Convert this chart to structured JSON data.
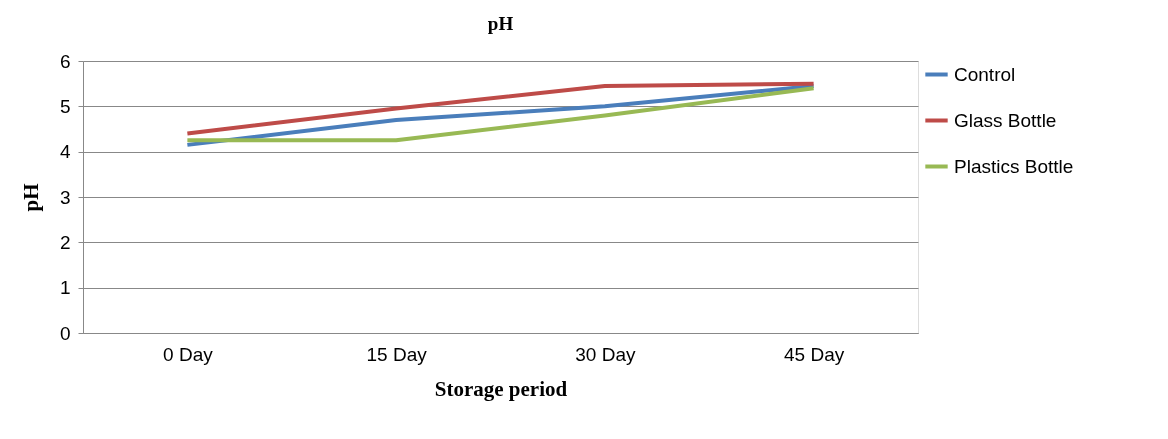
{
  "chart_data": {
    "type": "line",
    "title": "pH",
    "xlabel": "Storage period",
    "ylabel": "pH",
    "categories": [
      "0 Day",
      "15 Day",
      "30 Day",
      "45 Day"
    ],
    "series": [
      {
        "name": "Control",
        "color": "#4a7ebb",
        "values": [
          4.15,
          4.7,
          5.0,
          5.45
        ]
      },
      {
        "name": "Glass Bottle",
        "color": "#be4b48",
        "values": [
          4.4,
          4.95,
          5.45,
          5.5
        ]
      },
      {
        "name": "Plastics Bottle",
        "color": "#98b954",
        "values": [
          4.25,
          4.25,
          4.8,
          5.4
        ]
      }
    ],
    "ylim": [
      0,
      6
    ],
    "yticks": [
      0,
      1,
      2,
      3,
      4,
      5,
      6
    ],
    "grid": "y",
    "legend": "right",
    "marker": "none",
    "line_style": "solid"
  }
}
